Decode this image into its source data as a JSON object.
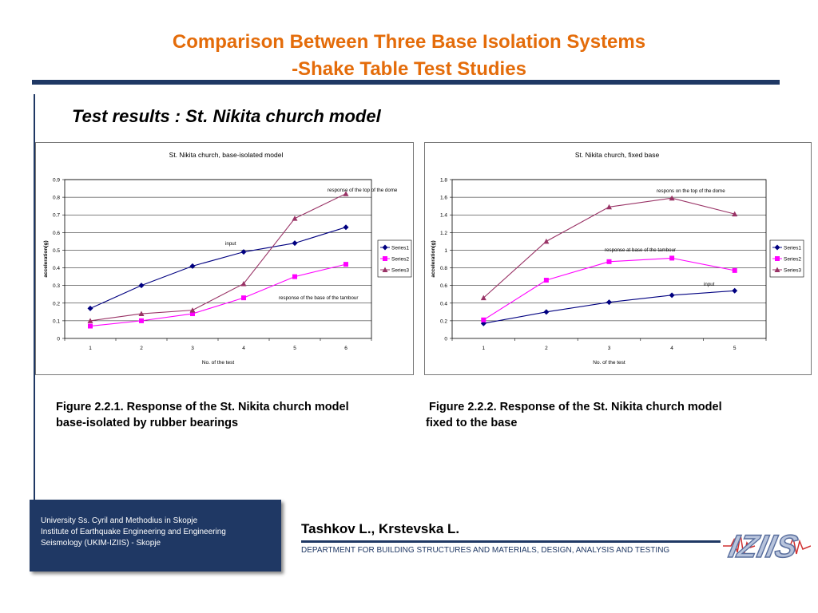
{
  "slide": {
    "title_line1": "Comparison Between Three Base Isolation Systems",
    "title_line2": "-Shake Table Test Studies",
    "subtitle": "Test results : St. Nikita church model",
    "caption_left_1": "Figure 2.2.1. Response of the St. Nikita church model",
    "caption_left_2": "base-isolated by rubber bearings",
    "caption_right_1": "Figure 2.2.2. Response of the St. Nikita church model",
    "caption_right_2": "fixed to the base",
    "footer_line1": "University Ss. Cyril and Methodius in Skopje",
    "footer_line2": "Institute of Earthquake Engineering and Engineering",
    "footer_line3": "Seismology (UKIM-IZIIS) - Skopje",
    "authors": "Tashkov L., Krstevska L.",
    "department": "DEPARTMENT FOR BUILDING STRUCTURES AND MATERIALS, DESIGN, ANALYSIS AND TESTING",
    "logo_text": "IZIIS",
    "colors": {
      "title": "#e46c0a",
      "navy": "#1f3864",
      "series1": "#000080",
      "series2": "#ff00ff",
      "series3": "#993366"
    }
  },
  "chart_data": [
    {
      "type": "line",
      "title": "St. Nikita church,  base-isolated model",
      "xlabel": "No. of the test",
      "ylabel": "acceleration(g)",
      "categories": [
        "1",
        "2",
        "3",
        "4",
        "5",
        "6"
      ],
      "ylim": [
        0,
        0.9
      ],
      "yticks": [
        "0",
        "0.1",
        "0.2",
        "0.3",
        "0.4",
        "0.5",
        "0.6",
        "0.7",
        "0.8",
        "0.9"
      ],
      "grid": true,
      "legend": "right",
      "series": [
        {
          "name": "Series1",
          "values": [
            0.17,
            0.3,
            0.41,
            0.49,
            0.54,
            0.63
          ]
        },
        {
          "name": "Series2",
          "values": [
            0.07,
            0.1,
            0.14,
            0.23,
            0.35,
            0.42
          ]
        },
        {
          "name": "Series3",
          "values": [
            0.1,
            0.14,
            0.16,
            0.31,
            0.68,
            0.82
          ]
        }
      ],
      "annotations": [
        "response of the top of the dome",
        "input",
        "response of the base of the tambour"
      ]
    },
    {
      "type": "line",
      "title": "St. Nikita church, fixed base",
      "xlabel": "No. of the test",
      "ylabel": "acceleration(g)",
      "categories": [
        "1",
        "2",
        "3",
        "4",
        "5"
      ],
      "ylim": [
        0,
        1.8
      ],
      "yticks": [
        "0",
        "0.2",
        "0.4",
        "0.6",
        "0.8",
        "1",
        "1.2",
        "1.4",
        "1.6",
        "1.8"
      ],
      "grid": true,
      "legend": "right",
      "series": [
        {
          "name": "Series1",
          "values": [
            0.17,
            0.3,
            0.41,
            0.49,
            0.54
          ]
        },
        {
          "name": "Series2",
          "values": [
            0.21,
            0.66,
            0.87,
            0.91,
            0.77
          ]
        },
        {
          "name": "Series3",
          "values": [
            0.46,
            1.1,
            1.49,
            1.59,
            1.41
          ]
        }
      ],
      "annotations": [
        "respons on the top of the dome",
        "response at base of the tambour",
        "input"
      ]
    }
  ]
}
